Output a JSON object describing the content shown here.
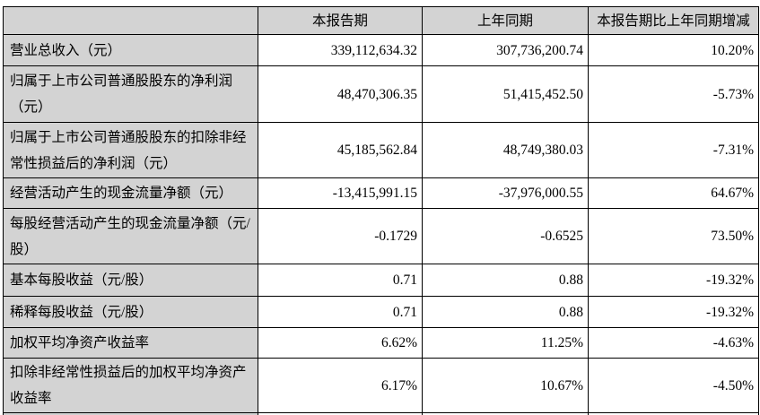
{
  "table": {
    "columns": {
      "metric": "",
      "current_period": "本报告期",
      "prior_period": "上年同期",
      "change": "本报告期比上年同期增减"
    },
    "rows": [
      {
        "label": "营业总收入（元）",
        "current": "339,112,634.32",
        "prior": "307,736,200.74",
        "change": "10.20%"
      },
      {
        "label": "归属于上市公司普通股股东的净利润（元）",
        "current": "48,470,306.35",
        "prior": "51,415,452.50",
        "change": "-5.73%"
      },
      {
        "label": "归属于上市公司普通股股东的扣除非经常性损益后的净利润（元）",
        "current": "45,185,562.84",
        "prior": "48,749,380.03",
        "change": "-7.31%"
      },
      {
        "label": "经营活动产生的现金流量净额（元）",
        "current": "-13,415,991.15",
        "prior": "-37,976,000.55",
        "change": "64.67%"
      },
      {
        "label": "每股经营活动产生的现金流量净额（元/股）",
        "current": "-0.1729",
        "prior": "-0.6525",
        "change": "73.50%"
      },
      {
        "label": "基本每股收益（元/股）",
        "current": "0.71",
        "prior": "0.88",
        "change": "-19.32%"
      },
      {
        "label": "稀释每股收益（元/股）",
        "current": "0.71",
        "prior": "0.88",
        "change": "-19.32%"
      },
      {
        "label": "加权平均净资产收益率",
        "current": "6.62%",
        "prior": "11.25%",
        "change": "-4.63%"
      },
      {
        "label": "扣除非经常性损益后的加权平均净资产收益率",
        "current": "6.17%",
        "prior": "10.67%",
        "change": "-4.50%"
      }
    ],
    "colors": {
      "header_bg": "#d3d3d3",
      "label_bg": "#d3d3d3",
      "data_bg": "#ffffff",
      "border": "#000000"
    }
  }
}
